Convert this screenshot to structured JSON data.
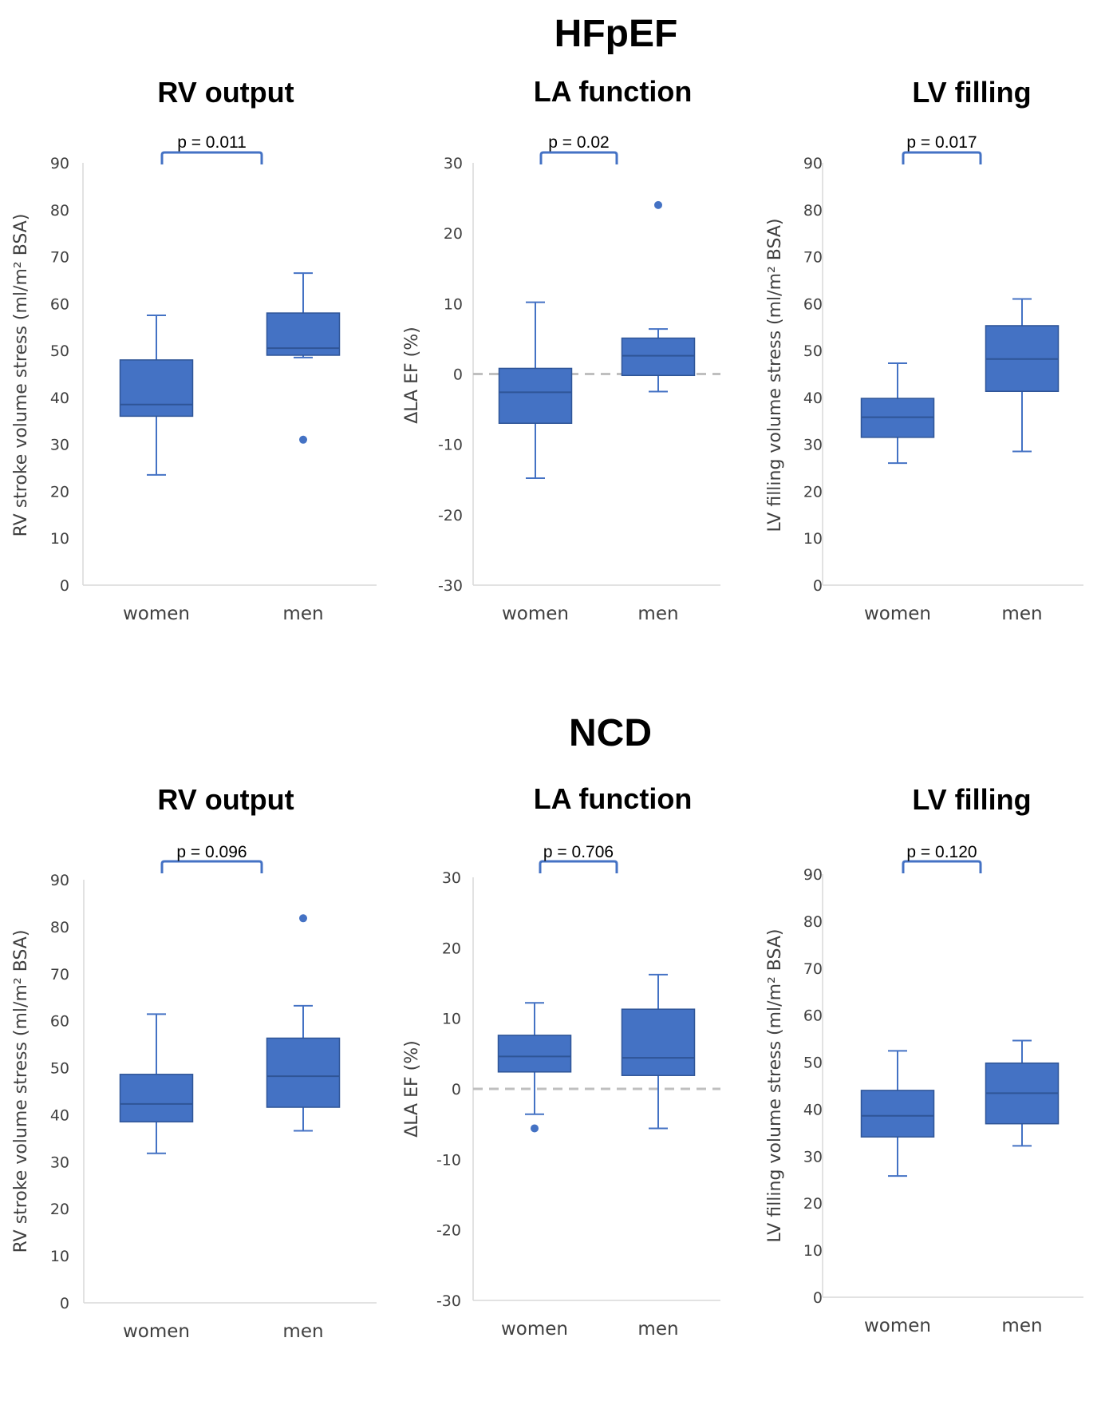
{
  "groups": [
    {
      "title": "HFpEF"
    },
    {
      "title": "NCD"
    }
  ],
  "chart_data": [
    {
      "type": "box",
      "group": "HFpEF",
      "title": "RV output",
      "ylabel": "RV stroke volume stress (ml/m² BSA)",
      "ylim": [
        0,
        90
      ],
      "yticks": [
        0,
        10,
        20,
        30,
        40,
        50,
        60,
        70,
        80,
        90
      ],
      "categories": [
        "women",
        "men"
      ],
      "boxes": [
        {
          "category": "women",
          "min": 23.5,
          "q1": 36,
          "median": 38.5,
          "q3": 48,
          "max": 57.5,
          "outliers": []
        },
        {
          "category": "men",
          "min": 48.5,
          "q1": 49,
          "median": 50.5,
          "q3": 58,
          "max": 66.5,
          "outliers": [
            31
          ]
        }
      ],
      "annotation": "p = 0.011",
      "zero_line": false,
      "color": "#4472C4"
    },
    {
      "type": "box",
      "group": "HFpEF",
      "title": "LA function",
      "ylabel": "ΔLA EF (%)",
      "ylim": [
        -30,
        30
      ],
      "yticks": [
        -30,
        -20,
        -10,
        0,
        10,
        20,
        30
      ],
      "categories": [
        "women",
        "men"
      ],
      "boxes": [
        {
          "category": "women",
          "min": -14.8,
          "q1": -7,
          "median": -2.6,
          "q3": 0.8,
          "max": 10.2,
          "outliers": []
        },
        {
          "category": "men",
          "min": -2.5,
          "q1": -0.2,
          "median": 2.6,
          "q3": 5.1,
          "max": 6.4,
          "outliers": [
            24
          ]
        }
      ],
      "annotation": "p = 0.02",
      "zero_line": true,
      "color": "#4472C4"
    },
    {
      "type": "box",
      "group": "HFpEF",
      "title": "LV filling",
      "ylabel": "LV filling volume stress (ml/m² BSA)",
      "ylim": [
        0,
        90
      ],
      "yticks": [
        0,
        10,
        20,
        30,
        40,
        50,
        60,
        70,
        80,
        90
      ],
      "categories": [
        "women",
        "men"
      ],
      "boxes": [
        {
          "category": "women",
          "min": 26,
          "q1": 31.5,
          "median": 35.8,
          "q3": 39.8,
          "max": 47.3,
          "outliers": []
        },
        {
          "category": "men",
          "min": 28.5,
          "q1": 41.3,
          "median": 48.2,
          "q3": 55.3,
          "max": 61,
          "outliers": []
        }
      ],
      "annotation": "p = 0.017",
      "zero_line": false,
      "color": "#4472C4"
    },
    {
      "type": "box",
      "group": "NCD",
      "title": "RV output",
      "ylabel": "RV stroke volume stress (ml/m² BSA)",
      "ylim": [
        0,
        90
      ],
      "yticks": [
        0,
        10,
        20,
        30,
        40,
        50,
        60,
        70,
        80,
        90
      ],
      "categories": [
        "women",
        "men"
      ],
      "boxes": [
        {
          "category": "women",
          "min": 31.8,
          "q1": 38.5,
          "median": 42.3,
          "q3": 48.6,
          "max": 61.4,
          "outliers": []
        },
        {
          "category": "men",
          "min": 36.6,
          "q1": 41.6,
          "median": 48.2,
          "q3": 56.3,
          "max": 63.2,
          "outliers": [
            81.8
          ]
        }
      ],
      "annotation": "p = 0.096",
      "zero_line": false,
      "color": "#4472C4"
    },
    {
      "type": "box",
      "group": "NCD",
      "title": "LA function",
      "ylabel": "ΔLA EF (%)",
      "ylim": [
        -30,
        30
      ],
      "yticks": [
        -30,
        -20,
        -10,
        0,
        10,
        20,
        30
      ],
      "categories": [
        "women",
        "men"
      ],
      "boxes": [
        {
          "category": "women",
          "min": -3.6,
          "q1": 2.4,
          "median": 4.6,
          "q3": 7.6,
          "max": 12.2,
          "outliers": [
            -5.6
          ]
        },
        {
          "category": "men",
          "min": -5.6,
          "q1": 1.9,
          "median": 4.4,
          "q3": 11.3,
          "max": 16.2,
          "outliers": []
        }
      ],
      "annotation": "p = 0.706",
      "zero_line": true,
      "color": "#4472C4"
    },
    {
      "type": "box",
      "group": "NCD",
      "title": "LV filling",
      "ylabel": "LV filling volume stress (ml/m² BSA)",
      "ylim": [
        0,
        90
      ],
      "yticks": [
        0,
        10,
        20,
        30,
        40,
        50,
        60,
        70,
        80,
        90
      ],
      "categories": [
        "women",
        "men"
      ],
      "boxes": [
        {
          "category": "women",
          "min": 25.8,
          "q1": 34.1,
          "median": 38.6,
          "q3": 44,
          "max": 52.4,
          "outliers": []
        },
        {
          "category": "men",
          "min": 32.2,
          "q1": 36.9,
          "median": 43.4,
          "q3": 49.8,
          "max": 54.6,
          "outliers": []
        }
      ],
      "annotation": "p = 0.120",
      "zero_line": false,
      "color": "#4472C4"
    }
  ]
}
